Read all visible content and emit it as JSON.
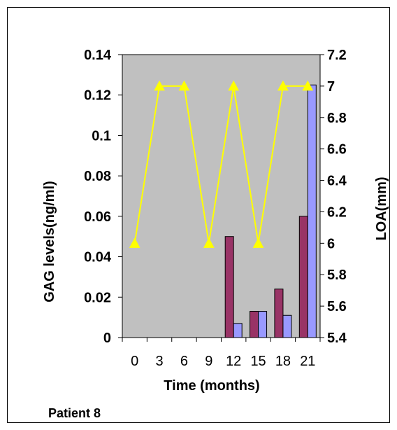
{
  "caption": "Patient 8",
  "chart_data": {
    "type": "bar",
    "x": [
      0,
      3,
      6,
      9,
      12,
      15,
      18,
      21
    ],
    "x_tick_labels": [
      "0",
      "3",
      "6",
      "9",
      "12",
      "15",
      "18",
      "21"
    ],
    "xlabel": "Time (months)",
    "ylabel_left": "GAG levels(ng/ml)",
    "ylabel_right": "LOA(mm)",
    "ylim_left": [
      0,
      0.14
    ],
    "ylim_right": [
      5.4,
      7.2
    ],
    "left_ticks": [
      0,
      0.02,
      0.04,
      0.06,
      0.08,
      0.1,
      0.12,
      0.14
    ],
    "left_tick_labels": [
      "0",
      "0.02",
      "0.04",
      "0.06",
      "0.08",
      "0.1",
      "0.12",
      "0.14"
    ],
    "right_ticks": [
      5.4,
      5.6,
      5.8,
      6,
      6.2,
      6.4,
      6.6,
      6.8,
      7,
      7.2
    ],
    "right_tick_labels": [
      "5.4",
      "5.6",
      "5.8",
      "6",
      "6.2",
      "6.4",
      "6.6",
      "6.8",
      "7",
      "7.2"
    ],
    "grid": false,
    "plot_background": "#c0c0c0",
    "series": [
      {
        "type": "bar",
        "axis": "left",
        "color": "#993366",
        "values": [
          null,
          null,
          null,
          null,
          0.05,
          0.013,
          0.024,
          0.06
        ]
      },
      {
        "type": "bar",
        "axis": "left",
        "color": "#9999ff",
        "values": [
          null,
          null,
          null,
          null,
          0.007,
          0.013,
          0.011,
          0.125
        ]
      },
      {
        "type": "line",
        "axis": "right",
        "color": "#ffff00",
        "marker": "triangle",
        "points": [
          [
            0,
            6.0
          ],
          [
            3,
            7.0
          ],
          [
            6,
            7.0
          ],
          [
            9,
            6.0
          ],
          [
            12,
            7.0
          ],
          [
            15,
            6.0
          ],
          [
            18,
            7.0
          ],
          [
            21,
            7.0
          ]
        ]
      }
    ]
  }
}
